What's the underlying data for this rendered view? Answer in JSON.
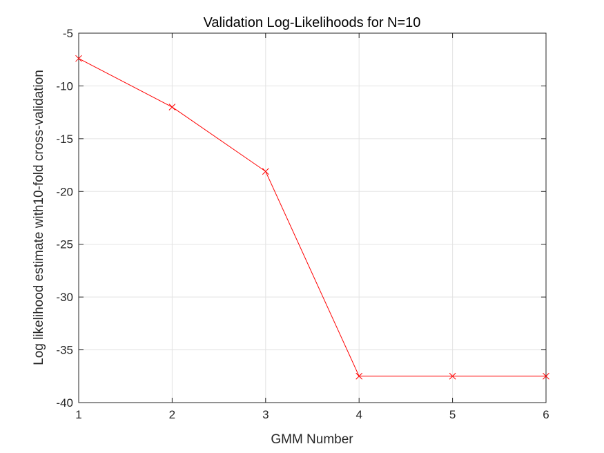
{
  "chart_data": {
    "type": "line",
    "title": "Validation Log-Likelihoods for N=10",
    "xlabel": "GMM Number",
    "ylabel": "Log likelihood estimate with10-fold cross-validation",
    "x": [
      1,
      2,
      3,
      4,
      5,
      6
    ],
    "series": [
      {
        "values": [
          -7.4,
          -12.0,
          -18.1,
          -37.5,
          -37.5,
          -37.5
        ],
        "color": "#ff0000",
        "marker": "x"
      }
    ],
    "xlim": [
      1,
      6
    ],
    "ylim": [
      -40,
      -5
    ],
    "xticks": [
      1,
      2,
      3,
      4,
      5,
      6
    ],
    "yticks": [
      -40,
      -35,
      -30,
      -25,
      -20,
      -15,
      -10,
      -5
    ],
    "grid": true,
    "box": true
  }
}
